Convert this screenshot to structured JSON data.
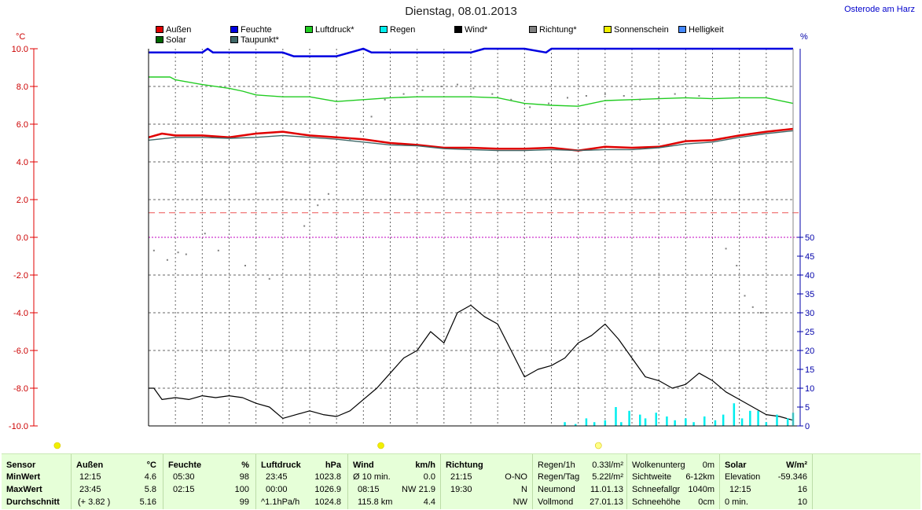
{
  "page": {
    "title": "Dienstag, 08.01.2013",
    "station": "Osterode am Harz"
  },
  "legend": [
    {
      "name": "Außen",
      "color": "#e00000"
    },
    {
      "name": "Feuchte",
      "color": "#0000e0"
    },
    {
      "name": "Luftdruck*",
      "color": "#22cc22"
    },
    {
      "name": "Regen",
      "color": "#00eeee"
    },
    {
      "name": "Wind*",
      "color": "#000000"
    },
    {
      "name": "Richtung*",
      "color": "#808080"
    },
    {
      "name": "Sonnenschein",
      "color": "#f0f000"
    },
    {
      "name": "Helligkeit",
      "color": "#4488ff"
    },
    {
      "name": "Solar",
      "color": "#006600"
    },
    {
      "name": "Taupunkt*",
      "color": "#406868"
    }
  ],
  "chart_data": {
    "type": "line",
    "left_axis": {
      "unit": "°C",
      "ylim": [
        -10,
        10
      ],
      "ticks": [
        "10.0",
        "8.0",
        "6.0",
        "4.0",
        "2.0",
        "0.0",
        "-2.0",
        "-4.0",
        "-6.0",
        "-8.0",
        "-10.0"
      ]
    },
    "right_axis": {
      "unit": "%",
      "ylim": [
        0,
        100
      ],
      "ticks": [
        "50",
        "45",
        "40",
        "35",
        "30",
        "25",
        "20",
        "15",
        "10",
        "5",
        "0"
      ]
    },
    "x_hours": [
      0,
      24
    ],
    "reference_line_temp": 1.3,
    "zero_line_temp": 0,
    "series": [
      {
        "name": "Außen",
        "axis": "left",
        "color": "#e00000",
        "values": [
          [
            0,
            5.3
          ],
          [
            0.5,
            5.5
          ],
          [
            1,
            5.4
          ],
          [
            2,
            5.4
          ],
          [
            3,
            5.3
          ],
          [
            4,
            5.5
          ],
          [
            5,
            5.6
          ],
          [
            6,
            5.4
          ],
          [
            7,
            5.3
          ],
          [
            8,
            5.2
          ],
          [
            9,
            5.0
          ],
          [
            10,
            4.9
          ],
          [
            11,
            4.75
          ],
          [
            12,
            4.75
          ],
          [
            13,
            4.7
          ],
          [
            14,
            4.7
          ],
          [
            15,
            4.75
          ],
          [
            16,
            4.6
          ],
          [
            17,
            4.8
          ],
          [
            18,
            4.75
          ],
          [
            19,
            4.8
          ],
          [
            20,
            5.1
          ],
          [
            21,
            5.15
          ],
          [
            22,
            5.4
          ],
          [
            23,
            5.6
          ],
          [
            24,
            5.75
          ]
        ]
      },
      {
        "name": "Taupunkt*",
        "axis": "left",
        "color": "#406868",
        "values": [
          [
            0,
            5.15
          ],
          [
            1,
            5.3
          ],
          [
            2,
            5.3
          ],
          [
            3,
            5.25
          ],
          [
            4,
            5.3
          ],
          [
            5,
            5.4
          ],
          [
            6,
            5.3
          ],
          [
            7,
            5.2
          ],
          [
            8,
            5.05
          ],
          [
            9,
            4.9
          ],
          [
            10,
            4.85
          ],
          [
            11,
            4.7
          ],
          [
            12,
            4.65
          ],
          [
            13,
            4.6
          ],
          [
            14,
            4.6
          ],
          [
            15,
            4.65
          ],
          [
            16,
            4.6
          ],
          [
            17,
            4.65
          ],
          [
            18,
            4.65
          ],
          [
            19,
            4.75
          ],
          [
            20,
            4.95
          ],
          [
            21,
            5.05
          ],
          [
            22,
            5.3
          ],
          [
            23,
            5.5
          ],
          [
            24,
            5.65
          ]
        ]
      },
      {
        "name": "Luftdruck*",
        "axis": "left",
        "color": "#22cc22",
        "values": [
          [
            0,
            8.5
          ],
          [
            0.8,
            8.5
          ],
          [
            1,
            8.35
          ],
          [
            2,
            8.1
          ],
          [
            3,
            7.9
          ],
          [
            3.5,
            7.75
          ],
          [
            4,
            7.55
          ],
          [
            5,
            7.45
          ],
          [
            6,
            7.45
          ],
          [
            7,
            7.2
          ],
          [
            8,
            7.3
          ],
          [
            9,
            7.4
          ],
          [
            10,
            7.45
          ],
          [
            11,
            7.45
          ],
          [
            12,
            7.45
          ],
          [
            13,
            7.4
          ],
          [
            14,
            7.1
          ],
          [
            15,
            7.0
          ],
          [
            16,
            6.95
          ],
          [
            17,
            7.25
          ],
          [
            18,
            7.3
          ],
          [
            19,
            7.35
          ],
          [
            20,
            7.4
          ],
          [
            21,
            7.35
          ],
          [
            22,
            7.4
          ],
          [
            23,
            7.4
          ],
          [
            24,
            7.1
          ]
        ]
      },
      {
        "name": "Feuchte",
        "axis": "right",
        "color": "#0000e0",
        "values": [
          [
            0,
            99
          ],
          [
            2,
            99
          ],
          [
            2.2,
            100
          ],
          [
            2.4,
            99
          ],
          [
            5,
            99
          ],
          [
            5.4,
            98
          ],
          [
            7,
            98
          ],
          [
            7.5,
            99
          ],
          [
            8,
            100
          ],
          [
            8.3,
            99
          ],
          [
            12,
            99
          ],
          [
            12.5,
            100
          ],
          [
            14,
            100
          ],
          [
            14.8,
            99
          ],
          [
            15,
            100
          ],
          [
            24,
            100
          ]
        ]
      },
      {
        "name": "Wind*",
        "axis": "right",
        "color": "#000000",
        "values": [
          [
            0,
            10
          ],
          [
            0.2,
            10
          ],
          [
            0.5,
            7
          ],
          [
            1,
            7.5
          ],
          [
            1.5,
            7
          ],
          [
            2,
            8
          ],
          [
            2.5,
            7.5
          ],
          [
            3,
            8
          ],
          [
            3.5,
            7.5
          ],
          [
            4,
            6
          ],
          [
            4.5,
            5
          ],
          [
            5,
            2
          ],
          [
            5.5,
            3
          ],
          [
            6,
            4
          ],
          [
            6.5,
            3
          ],
          [
            7,
            2.5
          ],
          [
            7.5,
            4
          ],
          [
            8,
            7
          ],
          [
            8.5,
            10
          ],
          [
            9,
            14
          ],
          [
            9.5,
            18
          ],
          [
            10,
            20
          ],
          [
            10.5,
            25
          ],
          [
            11,
            22
          ],
          [
            11.5,
            30
          ],
          [
            12,
            32
          ],
          [
            12.5,
            29
          ],
          [
            13,
            27
          ],
          [
            13.5,
            20
          ],
          [
            14,
            13
          ],
          [
            14.5,
            15
          ],
          [
            15,
            16
          ],
          [
            15.5,
            18
          ],
          [
            16,
            22
          ],
          [
            16.5,
            24
          ],
          [
            17,
            27
          ],
          [
            17.5,
            23
          ],
          [
            18,
            18
          ],
          [
            18.5,
            13
          ],
          [
            19,
            12
          ],
          [
            19.5,
            10
          ],
          [
            20,
            11
          ],
          [
            20.5,
            14
          ],
          [
            21,
            12
          ],
          [
            21.5,
            9
          ],
          [
            22,
            7
          ],
          [
            22.5,
            5
          ],
          [
            23,
            3
          ],
          [
            23.5,
            2.5
          ],
          [
            24,
            1.5
          ]
        ]
      },
      {
        "name": "Regen",
        "axis": "right",
        "color": "#00eeee",
        "values": [
          [
            15.5,
            1
          ],
          [
            15.9,
            0.5
          ],
          [
            16.3,
            2
          ],
          [
            16.6,
            1
          ],
          [
            17,
            1.5
          ],
          [
            17.4,
            5
          ],
          [
            17.6,
            1
          ],
          [
            17.9,
            4
          ],
          [
            18.3,
            3
          ],
          [
            18.5,
            2
          ],
          [
            18.9,
            3.5
          ],
          [
            19.3,
            2.5
          ],
          [
            19.6,
            1.5
          ],
          [
            20,
            2
          ],
          [
            20.3,
            1
          ],
          [
            20.7,
            2.5
          ],
          [
            21.1,
            1.5
          ],
          [
            21.4,
            3
          ],
          [
            21.8,
            6
          ],
          [
            22.1,
            2
          ],
          [
            22.4,
            4
          ],
          [
            22.7,
            4
          ],
          [
            23,
            1
          ],
          [
            23.4,
            3
          ],
          [
            23.8,
            2
          ],
          [
            24,
            3.5
          ]
        ]
      },
      {
        "name": "Richtung*",
        "axis": "left",
        "color": "#808080",
        "values": [
          [
            0.2,
            -0.7
          ],
          [
            0.7,
            -1.2
          ],
          [
            1.1,
            -0.8
          ],
          [
            1.4,
            -0.9
          ],
          [
            2.1,
            0.2
          ],
          [
            2.6,
            -0.7
          ],
          [
            3.6,
            -1.5
          ],
          [
            4.5,
            -2.2
          ],
          [
            5.8,
            0.6
          ],
          [
            6.3,
            1.7
          ],
          [
            6.7,
            2.3
          ],
          [
            7.5,
            5.2
          ],
          [
            7.9,
            5.6
          ],
          [
            8.3,
            6.4
          ],
          [
            8.8,
            7.3
          ],
          [
            9.5,
            7.6
          ],
          [
            10.2,
            7.8
          ],
          [
            10.9,
            8.0
          ],
          [
            11.5,
            8.1
          ],
          [
            12.1,
            7.9
          ],
          [
            12.8,
            7.6
          ],
          [
            13.5,
            7.3
          ],
          [
            14.2,
            6.9
          ],
          [
            14.9,
            7.1
          ],
          [
            15.6,
            7.4
          ],
          [
            16.3,
            7.5
          ],
          [
            17.0,
            7.6
          ],
          [
            17.7,
            7.5
          ],
          [
            18.3,
            7.3
          ],
          [
            19.0,
            7.4
          ],
          [
            19.6,
            7.6
          ],
          [
            20.5,
            7.5
          ],
          [
            21.5,
            -0.6
          ],
          [
            21.9,
            -1.5
          ],
          [
            22.2,
            -3.1
          ],
          [
            22.5,
            -3.7
          ],
          [
            22.8,
            -4.0
          ]
        ]
      }
    ],
    "markers": [
      {
        "name": "sun-left",
        "hour": -3.4,
        "color": "#f0f000"
      },
      {
        "name": "sun-center",
        "hour": 8.65,
        "color": "#f0f000"
      },
      {
        "name": "moon",
        "hour": 16.75,
        "color": "#ffff88"
      }
    ]
  },
  "table": {
    "rowlabels": {
      "header": "Sensor",
      "min": "MinWert",
      "max": "MaxWert",
      "avg": "Durchschnitt"
    },
    "aussen": {
      "title": "Außen",
      "unit": "°C",
      "min_time": "12:15",
      "min_val": "4.6",
      "max_time": "23:45",
      "max_val": "5.8",
      "avg_extra": "(+ 3.82 )",
      "avg_val": "5.16"
    },
    "feuchte": {
      "title": "Feuchte",
      "unit": "%",
      "min_time": "05:30",
      "min_val": "98",
      "max_time": "02:15",
      "max_val": "100",
      "avg_val": "99"
    },
    "luftdruck": {
      "title": "Luftdruck",
      "unit": "hPa",
      "min_time": "23:45",
      "min_val": "1023.8",
      "max_time": "00:00",
      "max_val": "1026.9",
      "avg_extra": "^1.1hPa/h",
      "avg_val": "1024.8"
    },
    "wind": {
      "title": "Wind",
      "unit": "km/h",
      "min_time": "Ø 10 min.",
      "min_val": "0.0",
      "max_time": "08:15",
      "max_mid": "NW",
      "max_val": "21.9",
      "avg_extra": "115.8 km",
      "avg_val": "4.4"
    },
    "richtung": {
      "title": "Richtung",
      "min_time": "21:15",
      "min_val": "O-NO",
      "max_time": "19:30",
      "max_val": "N",
      "avg_val": "NW"
    },
    "regen": [
      {
        "label": "Regen/1h",
        "value": "0.33l/m²"
      },
      {
        "label": "Regen/Tag",
        "value": "5.22l/m²"
      },
      {
        "label": "Neumond",
        "value": "11.01.13"
      },
      {
        "label": "Vollmond",
        "value": "27.01.13"
      }
    ],
    "wolken": [
      {
        "label": "Wolkenunterg",
        "value": "0m"
      },
      {
        "label": "Sichtweite",
        "value": "6-12km"
      },
      {
        "label": "Schneefallgr",
        "value": "1040m"
      },
      {
        "label": "Schneehöhe",
        "value": "0cm"
      }
    ],
    "solar": {
      "title": "Solar",
      "unit": "W/m²",
      "rows": [
        {
          "label": "Elevation",
          "value": "-59.346"
        },
        {
          "label": "12:15",
          "value": "16"
        },
        {
          "label": "0 min.",
          "value": "10"
        }
      ]
    }
  }
}
